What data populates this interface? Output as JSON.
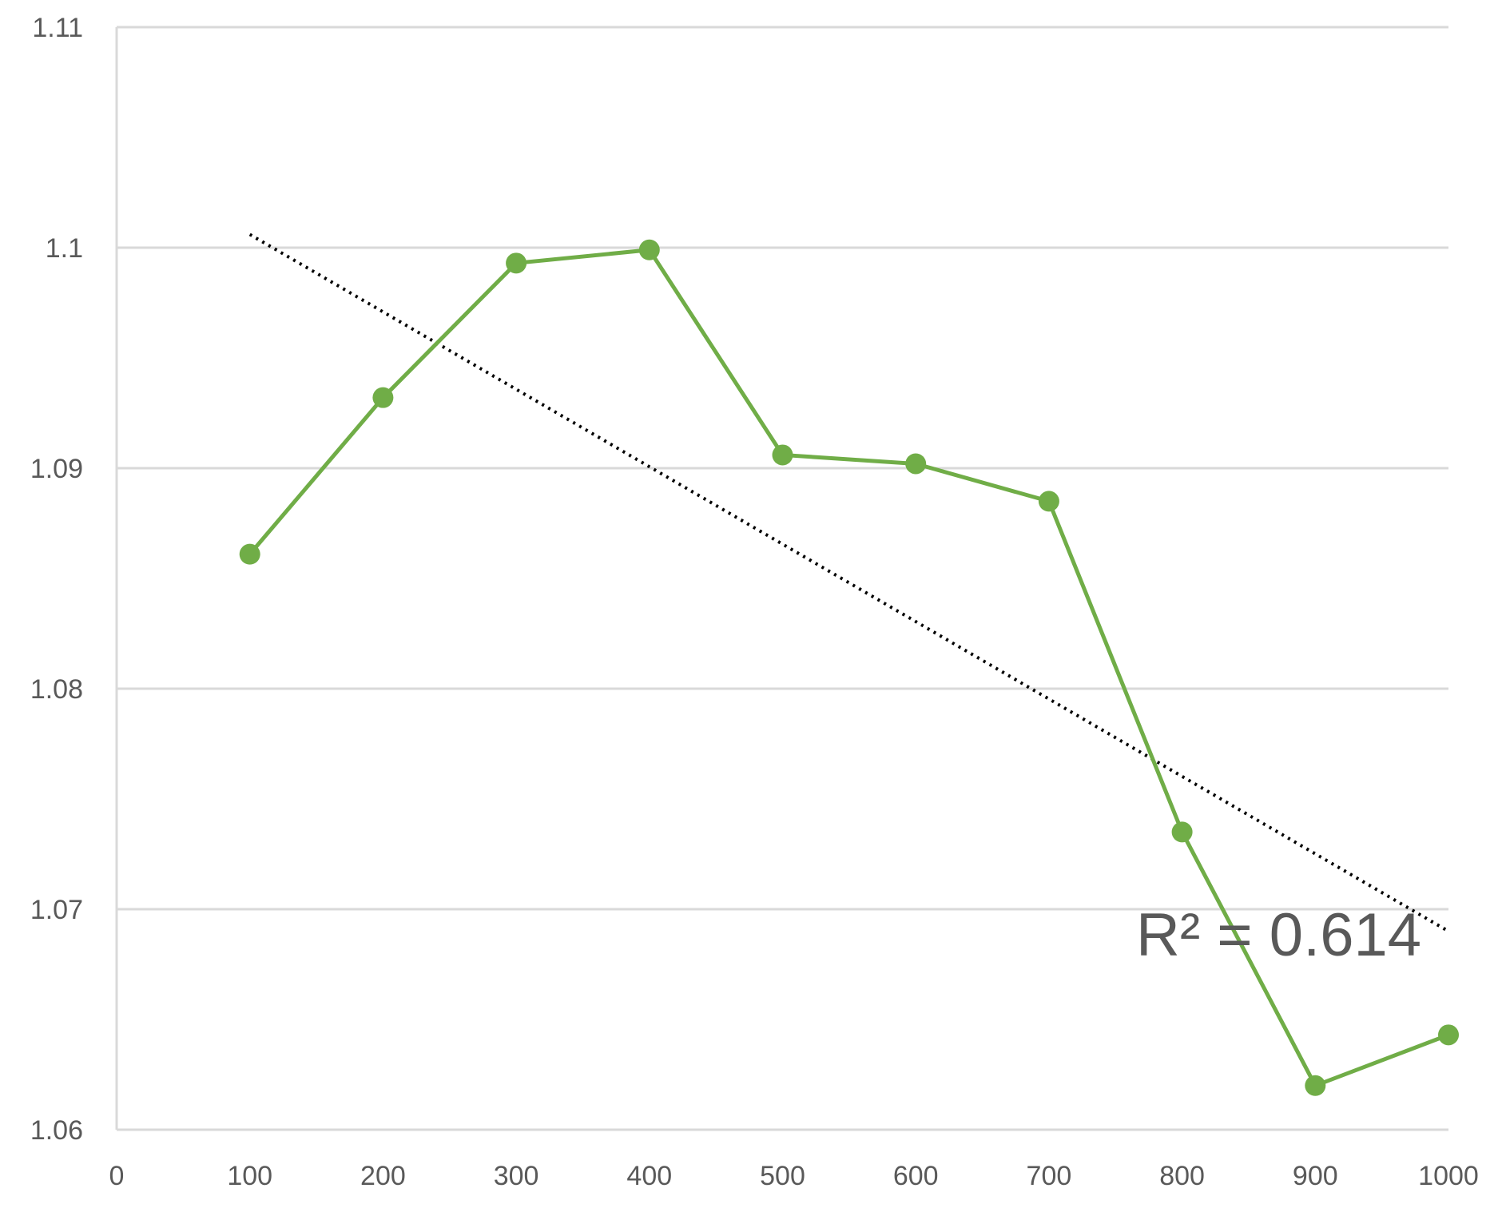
{
  "chart_data": {
    "type": "line",
    "title": "",
    "xlabel": "",
    "ylabel": "",
    "xlim": [
      0,
      1000
    ],
    "ylim": [
      1.06,
      1.11
    ],
    "x_ticks": [
      0,
      100,
      200,
      300,
      400,
      500,
      600,
      700,
      800,
      900,
      1000
    ],
    "x_tick_labels": [
      "0",
      "100",
      "200",
      "300",
      "400",
      "500",
      "600",
      "700",
      "800",
      "900",
      "1000"
    ],
    "y_ticks": [
      1.06,
      1.07,
      1.08,
      1.09,
      1.1,
      1.11
    ],
    "y_tick_labels": [
      "1.06",
      "1.07",
      "1.08",
      "1.09",
      "1.1",
      "1.11"
    ],
    "grid": true,
    "legend": "none",
    "series": [
      {
        "color": "#70ad47",
        "marker": "circle",
        "x": [
          100,
          200,
          300,
          400,
          500,
          600,
          700,
          800,
          900,
          1000
        ],
        "y": [
          1.0861,
          1.0932,
          1.0993,
          1.0999,
          1.0906,
          1.0902,
          1.0885,
          1.0735,
          1.062,
          1.0643
        ]
      }
    ],
    "trendline": {
      "type": "linear",
      "style": "dotted",
      "color": "#000000",
      "x": [
        100,
        1000
      ],
      "y": [
        1.1006,
        1.069
      ],
      "annotation": "R² = 0.614"
    }
  }
}
